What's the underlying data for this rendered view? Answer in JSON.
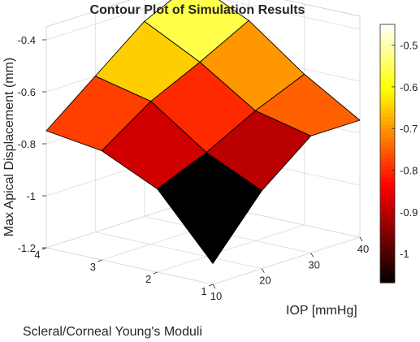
{
  "chart_data": {
    "type": "surface",
    "title": "Contour Plot of Simulation Results",
    "xlabel": "IOP [mmHg]",
    "ylabel": "Scleral/Corneal Young's Moduli",
    "zlabel": "Max Apical Displacement (mm)",
    "x": [
      10,
      20,
      30,
      40
    ],
    "y": [
      1,
      2,
      3,
      4
    ],
    "z": [
      [
        -1.12,
        -0.9,
        -0.75,
        -0.75
      ],
      [
        -0.88,
        -0.8,
        -0.7,
        -0.62
      ],
      [
        -0.78,
        -0.65,
        -0.56,
        -0.46
      ],
      [
        -0.75,
        -0.6,
        -0.45,
        -0.36
      ]
    ],
    "xlim": [
      10,
      40
    ],
    "ylim": [
      1,
      4
    ],
    "zlim": [
      -1.2,
      -0.35
    ],
    "x_ticks": [
      "10",
      "20",
      "30",
      "40"
    ],
    "y_ticks": [
      "1",
      "2",
      "3",
      "4"
    ],
    "z_ticks": [
      -1.2,
      -1,
      -0.8,
      -0.6,
      -0.4
    ],
    "z_tick_labels": [
      "-1.2",
      "-1",
      "-0.8",
      "-0.6",
      "-0.4"
    ],
    "colorbar": {
      "colormap": "hot",
      "clim": [
        -1.07,
        -0.45
      ],
      "ticks": [
        -1,
        -0.9,
        -0.8,
        -0.7,
        -0.6,
        -0.5
      ],
      "tick_labels": [
        "-1",
        "-0.9",
        "-0.8",
        "-0.7",
        "-0.6",
        "-0.5"
      ]
    },
    "grid": true,
    "box": true
  }
}
